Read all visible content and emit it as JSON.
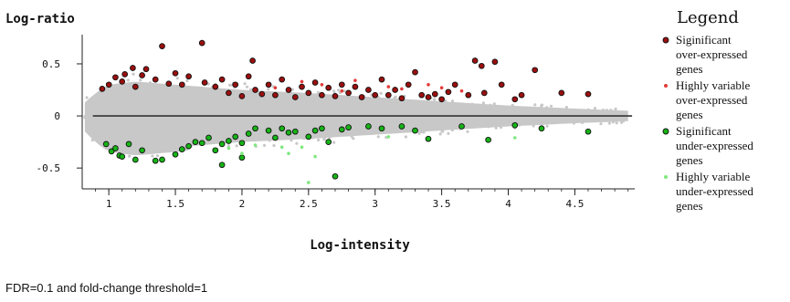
{
  "chart_data": {
    "type": "scatter",
    "title": "",
    "xlabel": "Log-intensity",
    "ylabel": "Log-ratio",
    "xlim": [
      0.8,
      4.95
    ],
    "ylim": [
      -0.7,
      0.78
    ],
    "x_ticks": [
      1,
      1.5,
      2,
      2.5,
      3,
      3.5,
      4,
      4.5
    ],
    "x_tick_labels": [
      "1",
      "1.5",
      "2",
      "2.5",
      "3",
      "3.5",
      "4",
      "4.5"
    ],
    "y_ticks": [
      0.5,
      0,
      -0.5
    ],
    "y_tick_labels": [
      "0.5",
      "0",
      "-0.5"
    ],
    "baseline": 0,
    "background_genes": {
      "color": "#c8c8c8",
      "envelope": [
        [
          0.82,
          0.13
        ],
        [
          0.9,
          0.22
        ],
        [
          1.0,
          0.3
        ],
        [
          1.2,
          0.33
        ],
        [
          1.5,
          0.3
        ],
        [
          2.0,
          0.25
        ],
        [
          2.5,
          0.22
        ],
        [
          3.0,
          0.18
        ],
        [
          3.5,
          0.14
        ],
        [
          4.0,
          0.1
        ],
        [
          4.5,
          0.07
        ],
        [
          4.9,
          0.05
        ]
      ]
    },
    "series": [
      {
        "name": "Siginificant over-expressed genes",
        "color": "#9b0f0f",
        "marker": "circle-outlined",
        "points": [
          [
            0.95,
            0.26
          ],
          [
            1.0,
            0.3
          ],
          [
            1.05,
            0.37
          ],
          [
            1.1,
            0.33
          ],
          [
            1.12,
            0.4
          ],
          [
            1.18,
            0.46
          ],
          [
            1.2,
            0.28
          ],
          [
            1.25,
            0.39
          ],
          [
            1.28,
            0.45
          ],
          [
            1.35,
            0.35
          ],
          [
            1.4,
            0.67
          ],
          [
            1.45,
            0.31
          ],
          [
            1.5,
            0.41
          ],
          [
            1.55,
            0.3
          ],
          [
            1.6,
            0.38
          ],
          [
            1.7,
            0.7
          ],
          [
            1.72,
            0.32
          ],
          [
            1.8,
            0.28
          ],
          [
            1.85,
            0.35
          ],
          [
            1.9,
            0.22
          ],
          [
            1.95,
            0.3
          ],
          [
            2.0,
            0.19
          ],
          [
            2.05,
            0.38
          ],
          [
            2.08,
            0.53
          ],
          [
            2.1,
            0.25
          ],
          [
            2.15,
            0.21
          ],
          [
            2.2,
            0.3
          ],
          [
            2.25,
            0.2
          ],
          [
            2.3,
            0.35
          ],
          [
            2.35,
            0.25
          ],
          [
            2.4,
            0.18
          ],
          [
            2.45,
            0.28
          ],
          [
            2.5,
            0.22
          ],
          [
            2.55,
            0.32
          ],
          [
            2.6,
            0.2
          ],
          [
            2.65,
            0.27
          ],
          [
            2.7,
            0.19
          ],
          [
            2.75,
            0.3
          ],
          [
            2.8,
            0.22
          ],
          [
            2.85,
            0.28
          ],
          [
            2.9,
            0.18
          ],
          [
            2.95,
            0.25
          ],
          [
            3.0,
            0.2
          ],
          [
            3.05,
            0.35
          ],
          [
            3.1,
            0.2
          ],
          [
            3.15,
            0.25
          ],
          [
            3.2,
            0.17
          ],
          [
            3.25,
            0.3
          ],
          [
            3.3,
            0.42
          ],
          [
            3.35,
            0.2
          ],
          [
            3.4,
            0.18
          ],
          [
            3.45,
            0.21
          ],
          [
            3.5,
            0.16
          ],
          [
            3.55,
            0.23
          ],
          [
            3.6,
            0.3
          ],
          [
            3.7,
            0.2
          ],
          [
            3.75,
            0.53
          ],
          [
            3.8,
            0.48
          ],
          [
            3.82,
            0.22
          ],
          [
            3.9,
            0.52
          ],
          [
            3.95,
            0.3
          ],
          [
            4.05,
            0.16
          ],
          [
            4.1,
            0.2
          ],
          [
            4.2,
            0.44
          ],
          [
            4.4,
            0.22
          ],
          [
            4.6,
            0.21
          ]
        ]
      },
      {
        "name": "Highly variable over-expressed genes",
        "color": "#e23a3a",
        "marker": "small-dot",
        "points": [
          [
            2.25,
            0.27
          ],
          [
            2.45,
            0.33
          ],
          [
            2.6,
            0.3
          ],
          [
            2.75,
            0.24
          ],
          [
            2.85,
            0.34
          ],
          [
            3.1,
            0.28
          ],
          [
            3.2,
            0.26
          ],
          [
            3.4,
            0.3
          ],
          [
            3.5,
            0.27
          ],
          [
            3.65,
            0.24
          ]
        ]
      },
      {
        "name": "Siginificant under-expressed genes",
        "color": "#16b516",
        "marker": "circle-outlined",
        "points": [
          [
            0.98,
            -0.27
          ],
          [
            1.02,
            -0.34
          ],
          [
            1.05,
            -0.31
          ],
          [
            1.08,
            -0.38
          ],
          [
            1.1,
            -0.39
          ],
          [
            1.15,
            -0.27
          ],
          [
            1.2,
            -0.42
          ],
          [
            1.25,
            -0.33
          ],
          [
            1.35,
            -0.43
          ],
          [
            1.4,
            -0.42
          ],
          [
            1.5,
            -0.37
          ],
          [
            1.55,
            -0.32
          ],
          [
            1.6,
            -0.29
          ],
          [
            1.65,
            -0.25
          ],
          [
            1.7,
            -0.26
          ],
          [
            1.75,
            -0.21
          ],
          [
            1.8,
            -0.33
          ],
          [
            1.85,
            -0.27
          ],
          [
            1.9,
            -0.24
          ],
          [
            1.95,
            -0.2
          ],
          [
            2.0,
            -0.26
          ],
          [
            2.05,
            -0.17
          ],
          [
            2.1,
            -0.12
          ],
          [
            2.2,
            -0.14
          ],
          [
            2.25,
            -0.21
          ],
          [
            2.3,
            -0.12
          ],
          [
            2.35,
            -0.16
          ],
          [
            2.4,
            -0.15
          ],
          [
            2.5,
            -0.2
          ],
          [
            2.55,
            -0.14
          ],
          [
            2.6,
            -0.12
          ],
          [
            2.65,
            -0.25
          ],
          [
            2.7,
            -0.58
          ],
          [
            2.75,
            -0.13
          ],
          [
            2.8,
            -0.11
          ],
          [
            2.95,
            -0.1
          ],
          [
            3.05,
            -0.12
          ],
          [
            3.2,
            -0.1
          ],
          [
            3.3,
            -0.14
          ],
          [
            3.4,
            -0.22
          ],
          [
            3.65,
            -0.1
          ],
          [
            3.85,
            -0.23
          ],
          [
            4.05,
            -0.09
          ],
          [
            4.25,
            -0.12
          ],
          [
            4.6,
            -0.15
          ],
          [
            1.85,
            -0.47
          ],
          [
            2.0,
            -0.4
          ]
        ]
      },
      {
        "name": "Highly variable under-expressed genes",
        "color": "#7ee87e",
        "marker": "small-dot",
        "points": [
          [
            2.3,
            -0.3
          ],
          [
            2.35,
            -0.36
          ],
          [
            2.45,
            -0.3
          ],
          [
            2.5,
            -0.64
          ],
          [
            2.55,
            -0.39
          ],
          [
            2.1,
            -0.28
          ],
          [
            3.1,
            -0.2
          ],
          [
            4.05,
            -0.21
          ],
          [
            2.0,
            -0.36
          ],
          [
            1.9,
            -0.31
          ]
        ]
      }
    ],
    "legend": {
      "title": "Legend",
      "placement": "right",
      "entries": [
        {
          "lines": [
            "Siginificant",
            "over-expressed",
            "genes"
          ],
          "color": "#9b0f0f",
          "marker": "circle"
        },
        {
          "lines": [
            "Highly variable",
            "over-expressed",
            "genes"
          ],
          "color": "#e23a3a",
          "marker": "dot"
        },
        {
          "lines": [
            "Siginificant",
            "under-expressed",
            "genes"
          ],
          "color": "#16b516",
          "marker": "circle"
        },
        {
          "lines": [
            "Highly variable",
            "under-expressed",
            "genes"
          ],
          "color": "#7ee87e",
          "marker": "dot"
        }
      ]
    }
  },
  "footnote": "FDR=0.1 and fold-change threshold=1"
}
